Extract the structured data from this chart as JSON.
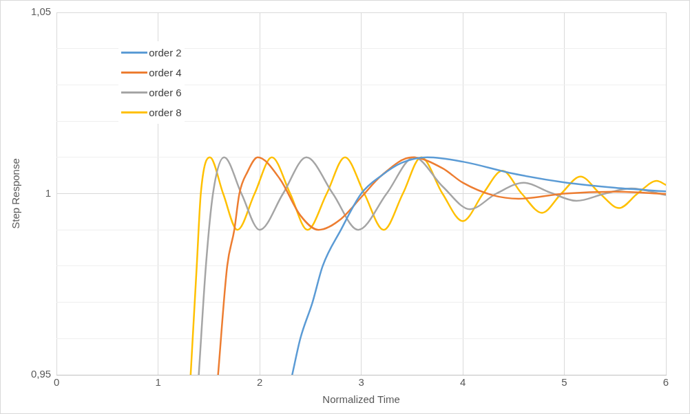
{
  "chart_data": {
    "type": "line",
    "xlabel": "Normalized Time",
    "ylabel": "Step Response",
    "xlim": [
      0,
      6
    ],
    "xticks": [
      0,
      1,
      2,
      3,
      4,
      5,
      6
    ],
    "ylim": [
      0.95,
      1.05
    ],
    "yticks": [
      {
        "value": 0.95,
        "label": "0,95"
      },
      {
        "value": 0.96,
        "label": null
      },
      {
        "value": 0.97,
        "label": null
      },
      {
        "value": 0.98,
        "label": null
      },
      {
        "value": 0.99,
        "label": null
      },
      {
        "value": 1,
        "label": "1"
      },
      {
        "value": 1.01,
        "label": null
      },
      {
        "value": 1.02,
        "label": null
      },
      {
        "value": 1.03,
        "label": null
      },
      {
        "value": 1.04,
        "label": null
      },
      {
        "value": 1.05,
        "label": "1,05"
      }
    ],
    "grid": true,
    "legend": "top left",
    "marker": "none",
    "line_style": "solid",
    "series": [
      {
        "name": "order 2",
        "color": "#5b9bd5",
        "x": [
          2.32,
          2.4,
          2.52,
          2.62,
          2.8,
          3.0,
          3.2,
          3.4,
          3.65,
          4.0,
          4.5,
          5.0,
          5.5,
          6.0
        ],
        "values": [
          0.95,
          0.96,
          0.97,
          0.98,
          0.99,
          1.0,
          1.005,
          1.0085,
          1.01,
          1.0088,
          1.0055,
          1.0031,
          1.0016,
          1.0006
        ]
      },
      {
        "name": "order 4",
        "color": "#ed7d31",
        "x": [
          1.59,
          1.68,
          1.75,
          1.8,
          1.88,
          1.98,
          2.2,
          2.4,
          2.58,
          2.8,
          3.0,
          3.2,
          3.5,
          3.8,
          4.0,
          4.3,
          4.55,
          5.0,
          5.5,
          6.0
        ],
        "values": [
          0.95,
          0.98,
          0.99,
          1.0,
          1.006,
          1.01,
          1.004,
          0.994,
          0.99,
          0.993,
          0.999,
          1.005,
          1.01,
          1.007,
          1.003,
          0.9995,
          0.9986,
          1.0,
          1.0005,
          0.9999
        ]
      },
      {
        "name": "order 6",
        "color": "#a5a5a5",
        "x": [
          1.4,
          1.47,
          1.54,
          1.65,
          1.82,
          2.0,
          2.23,
          2.46,
          2.72,
          2.97,
          3.25,
          3.52,
          3.8,
          4.07,
          4.33,
          4.6,
          4.86,
          5.12,
          5.4,
          5.66,
          6.0
        ],
        "values": [
          0.95,
          0.98,
          1.0,
          1.01,
          1.0,
          0.99,
          1.0,
          1.01,
          1.0,
          0.99,
          1.0,
          1.01,
          1.002,
          0.9957,
          1.0,
          1.003,
          1.0003,
          0.998,
          1.0,
          1.0014,
          0.9996
        ]
      },
      {
        "name": "order 8",
        "color": "#ffc000",
        "x": [
          1.32,
          1.38,
          1.42,
          1.51,
          1.64,
          1.78,
          1.95,
          2.12,
          2.3,
          2.47,
          2.66,
          2.84,
          3.03,
          3.22,
          3.41,
          3.59,
          3.8,
          4.0,
          4.2,
          4.39,
          4.58,
          4.78,
          4.97,
          5.16,
          5.35,
          5.54,
          5.72,
          5.91,
          6.0
        ],
        "values": [
          0.95,
          0.98,
          1.0,
          1.01,
          1.0,
          0.99,
          1.0,
          1.01,
          1.0,
          0.99,
          1.0,
          1.01,
          1.0,
          0.99,
          1.0,
          1.01,
          1.0,
          0.9924,
          1.0,
          1.0063,
          1.0,
          0.9947,
          1.0,
          1.0047,
          1.0,
          0.996,
          1.0,
          1.0035,
          1.0024
        ]
      }
    ]
  }
}
